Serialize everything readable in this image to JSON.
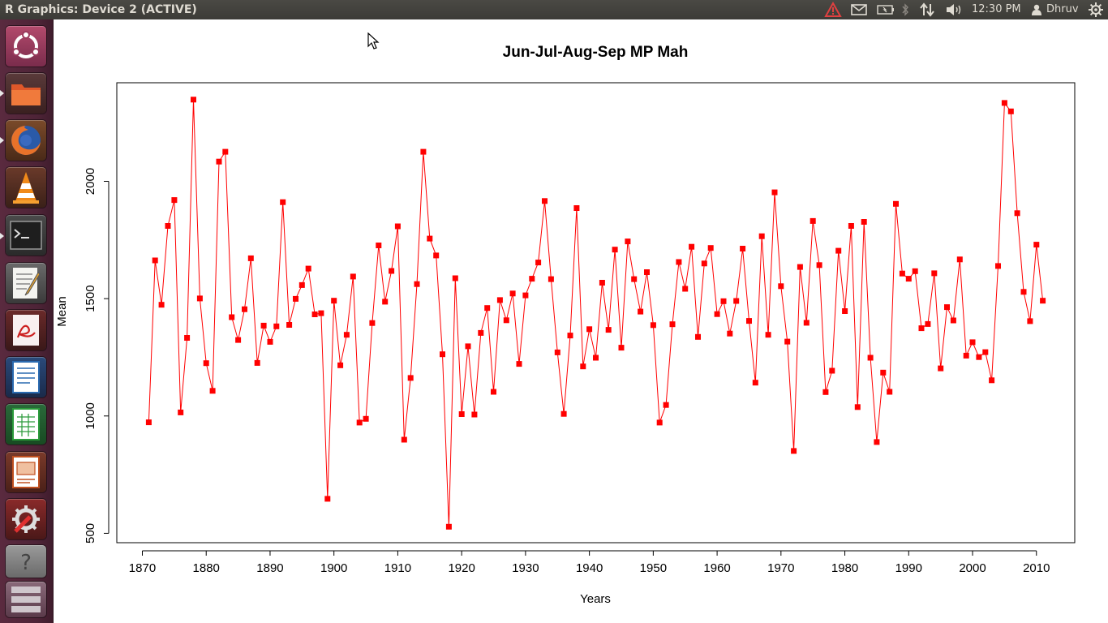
{
  "window": {
    "title": "R Graphics: Device 2 (ACTIVE)"
  },
  "topbar": {
    "tray_icons": [
      "warning-icon",
      "mail-icon",
      "battery-icon",
      "bluetooth-icon",
      "network-icon",
      "volume-icon"
    ],
    "clock": "12:30 PM",
    "user": "Dhruv",
    "session_icon": "gear-icon"
  },
  "launcher": {
    "items": [
      "ubuntu-dash-icon",
      "files-icon",
      "firefox-icon",
      "vlc-icon",
      "terminal-icon",
      "text-editor-icon",
      "document-viewer-icon",
      "writer-icon",
      "calc-icon",
      "impress-icon",
      "system-settings-icon",
      "unknown-app-icon",
      "workspace-switcher-icon"
    ]
  },
  "colors": {
    "series": "#ff0000",
    "launcher": "#4e2437",
    "topbar": "#3c3b37"
  },
  "chart_data": {
    "type": "line",
    "title": "Jun-Jul-Aug-Sep MP Mah",
    "xlabel": "Years",
    "ylabel": "Mean",
    "xlim": [
      1866,
      2016
    ],
    "ylim": [
      460,
      2420
    ],
    "xticks": [
      "1870",
      "1880",
      "1890",
      "1900",
      "1910",
      "1920",
      "1930",
      "1940",
      "1950",
      "1960",
      "1970",
      "1980",
      "1990",
      "2000",
      "2010"
    ],
    "yticks": [
      "500",
      "1000",
      "1500",
      "2000"
    ],
    "grid": false,
    "legend": "none",
    "markers": "square",
    "x": [
      1871,
      1872,
      1873,
      1874,
      1875,
      1876,
      1877,
      1878,
      1879,
      1880,
      1881,
      1882,
      1883,
      1884,
      1885,
      1886,
      1887,
      1888,
      1889,
      1890,
      1891,
      1892,
      1893,
      1894,
      1895,
      1896,
      1897,
      1898,
      1899,
      1900,
      1901,
      1902,
      1903,
      1904,
      1905,
      1906,
      1907,
      1908,
      1909,
      1910,
      1911,
      1912,
      1913,
      1914,
      1915,
      1916,
      1917,
      1918,
      1919,
      1920,
      1921,
      1922,
      1923,
      1924,
      1925,
      1926,
      1927,
      1928,
      1929,
      1930,
      1931,
      1932,
      1933,
      1934,
      1935,
      1936,
      1937,
      1938,
      1939,
      1940,
      1941,
      1942,
      1943,
      1944,
      1945,
      1946,
      1947,
      1948,
      1949,
      1950,
      1951,
      1952,
      1953,
      1954,
      1955,
      1956,
      1957,
      1958,
      1959,
      1960,
      1961,
      1962,
      1963,
      1964,
      1965,
      1966,
      1967,
      1968,
      1969,
      1970,
      1971,
      1972,
      1973,
      1974,
      1975,
      1976,
      1977,
      1978,
      1979,
      1980,
      1981,
      1982,
      1983,
      1984,
      1985,
      1986,
      1987,
      1988,
      1989,
      1990,
      1991,
      1992,
      1993,
      1994,
      1995,
      1996,
      1997,
      1998,
      1999,
      2000,
      2001,
      2002,
      2003,
      2004,
      2005,
      2006,
      2007,
      2008,
      2009,
      2010,
      2011
    ],
    "y": [
      973,
      1663,
      1474,
      1810,
      1920,
      1015,
      1333,
      2348,
      1501,
      1225,
      1107,
      2084,
      2126,
      1421,
      1324,
      1455,
      1672,
      1226,
      1385,
      1316,
      1382,
      1911,
      1388,
      1499,
      1558,
      1628,
      1433,
      1438,
      647,
      1491,
      1216,
      1346,
      1594,
      972,
      988,
      1396,
      1727,
      1487,
      1618,
      1808,
      899,
      1162,
      1562,
      2126,
      1756,
      1684,
      1263,
      528,
      1587,
      1008,
      1297,
      1006,
      1354,
      1460,
      1103,
      1494,
      1408,
      1522,
      1222,
      1514,
      1585,
      1654,
      1916,
      1583,
      1271,
      1009,
      1343,
      1886,
      1211,
      1370,
      1248,
      1568,
      1367,
      1709,
      1291,
      1744,
      1583,
      1445,
      1613,
      1387,
      972,
      1047,
      1391,
      1656,
      1542,
      1721,
      1337,
      1650,
      1716,
      1434,
      1489,
      1351,
      1490,
      1713,
      1405,
      1142,
      1766,
      1346,
      1953,
      1553,
      1317,
      851,
      1635,
      1397,
      1831,
      1643,
      1102,
      1193,
      1704,
      1447,
      1810,
      1038,
      1827,
      1248,
      889,
      1185,
      1103,
      1904,
      1607,
      1585,
      1617,
      1374,
      1392,
      1608,
      1203,
      1464,
      1407,
      1667,
      1257,
      1314,
      1251,
      1272,
      1152,
      1639,
      2334,
      2298,
      1864,
      1529,
      1404,
      1730,
      1491
    ]
  }
}
